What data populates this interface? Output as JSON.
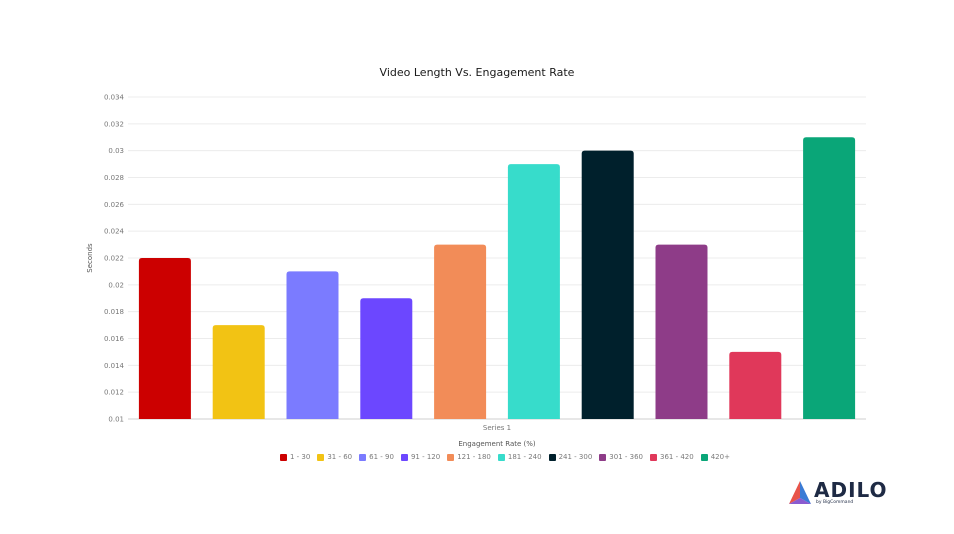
{
  "chart_data": {
    "type": "bar",
    "title": "Video Length Vs. Engagement Rate",
    "xlabel": "Engagement Rate (%)",
    "ylabel": "Seconds",
    "categories": [
      "Series 1"
    ],
    "series": [
      {
        "name": "1 - 30",
        "value": 0.022,
        "color": "#cc0000"
      },
      {
        "name": "31 - 60",
        "value": 0.017,
        "color": "#f2c314"
      },
      {
        "name": "61 - 90",
        "value": 0.021,
        "color": "#7b7bff"
      },
      {
        "name": "91 - 120",
        "value": 0.019,
        "color": "#6c47ff"
      },
      {
        "name": "121 - 180",
        "value": 0.023,
        "color": "#f28c58"
      },
      {
        "name": "181 - 240",
        "value": 0.029,
        "color": "#37dccb"
      },
      {
        "name": "241 - 300",
        "value": 0.03,
        "color": "#00202c"
      },
      {
        "name": "301 - 360",
        "value": 0.023,
        "color": "#8e3c88"
      },
      {
        "name": "361 - 420",
        "value": 0.015,
        "color": "#e0385a"
      },
      {
        "name": "420+",
        "value": 0.031,
        "color": "#0aa678"
      }
    ],
    "ylim": [
      0.01,
      0.034
    ],
    "yticks": [
      "0.01",
      "0.012",
      "0.014",
      "0.016",
      "0.018",
      "0.02",
      "0.022",
      "0.024",
      "0.026",
      "0.028",
      "0.03",
      "0.032",
      "0.034"
    ],
    "grid": true,
    "legend_position": "bottom"
  },
  "logo": {
    "name": "ADILO",
    "tagline": "by BigCommand"
  }
}
